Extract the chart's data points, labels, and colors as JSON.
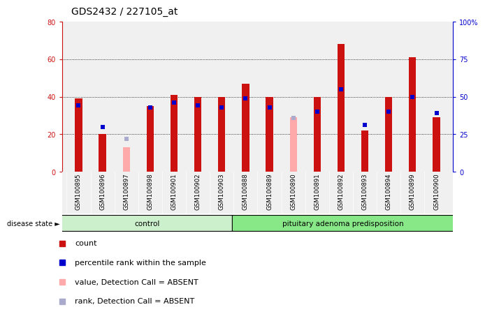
{
  "title": "GDS2432 / 227105_at",
  "samples": [
    "GSM100895",
    "GSM100896",
    "GSM100897",
    "GSM100898",
    "GSM100901",
    "GSM100902",
    "GSM100903",
    "GSM100888",
    "GSM100889",
    "GSM100890",
    "GSM100891",
    "GSM100892",
    "GSM100893",
    "GSM100894",
    "GSM100899",
    "GSM100900"
  ],
  "red_values": [
    39,
    20,
    null,
    35,
    41,
    40,
    40,
    47,
    40,
    null,
    40,
    68,
    22,
    40,
    61,
    29
  ],
  "pink_values": [
    null,
    null,
    13,
    null,
    null,
    null,
    null,
    null,
    null,
    29,
    null,
    null,
    null,
    null,
    null,
    null
  ],
  "blue_values": [
    44,
    30,
    null,
    43,
    46,
    44,
    43,
    49,
    43,
    null,
    40,
    55,
    31,
    40,
    50,
    39
  ],
  "lavender_values": [
    null,
    null,
    22,
    null,
    null,
    null,
    null,
    null,
    null,
    36,
    null,
    null,
    null,
    null,
    null,
    null
  ],
  "n_control": 7,
  "n_disease": 9,
  "control_label": "control",
  "disease_label": "pituitary adenoma predisposition",
  "disease_state_label": "disease state",
  "ylim_left": [
    0,
    80
  ],
  "ylim_right": [
    0,
    100
  ],
  "yticks_left": [
    0,
    20,
    40,
    60,
    80
  ],
  "yticks_right": [
    0,
    25,
    50,
    75,
    100
  ],
  "ytick_labels_right": [
    "0",
    "25",
    "50",
    "75",
    "100%"
  ],
  "background_color": "#ffffff",
  "plot_bg_color": "#f0f0f0",
  "control_bg": "#ccf0cc",
  "disease_bg": "#88e888",
  "red_color": "#cc1111",
  "pink_color": "#ffaaaa",
  "blue_color": "#0000cc",
  "lavender_color": "#aaaacc",
  "grid_color": "#000000",
  "title_fontsize": 10,
  "tick_fontsize": 7,
  "legend_fontsize": 8,
  "label_fontsize": 8
}
